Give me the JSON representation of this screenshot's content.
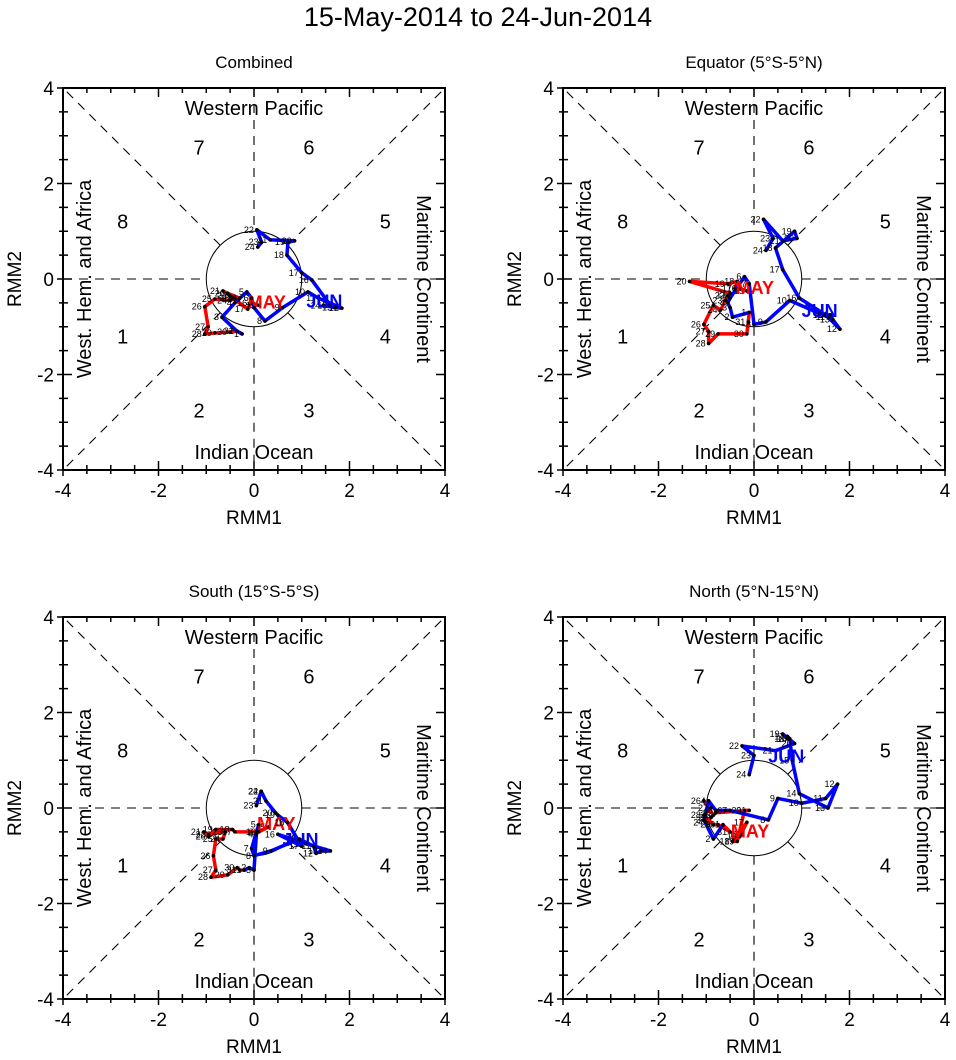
{
  "title": "15-May-2014 to 24-Jun-2014",
  "chart_data": [
    {
      "type": "line",
      "title": "Combined",
      "xlabel": "RMM1",
      "ylabel": "RMM2",
      "xlim": [
        -4,
        4
      ],
      "ylim": [
        -4,
        4
      ],
      "xticks": [
        -4,
        -2,
        0,
        2,
        4
      ],
      "yticks": [
        -4,
        -2,
        0,
        2,
        4
      ],
      "region_labels": {
        "top": "Western Pacific",
        "bottom": "Indian Ocean",
        "left": "West. Hem. and Africa",
        "right": "Maritime Continent"
      },
      "phase_labels": [
        "1",
        "2",
        "3",
        "4",
        "5",
        "6",
        "7",
        "8"
      ],
      "series": [
        {
          "name": "MAY",
          "color": "#ff0000",
          "days": [
            15,
            16,
            17,
            18,
            19,
            20,
            21,
            22,
            23,
            24,
            25,
            26,
            27,
            28,
            29,
            30,
            31
          ],
          "x": [
            0.1,
            -0.08,
            -0.13,
            -0.45,
            -0.3,
            -0.55,
            -0.65,
            -0.5,
            -0.4,
            -0.5,
            -0.82,
            -1.03,
            -0.96,
            -1.03,
            -0.82,
            -0.5,
            -0.36
          ],
          "y": [
            -0.55,
            -0.5,
            -0.63,
            -0.4,
            -0.4,
            -0.3,
            -0.25,
            -0.35,
            -0.4,
            -0.45,
            -0.42,
            -0.58,
            -1.0,
            -1.15,
            -1.13,
            -1.11,
            -1.09
          ]
        },
        {
          "name": "JUN",
          "color": "#0000ff",
          "days": [
            1,
            2,
            3,
            4,
            5,
            6,
            7,
            8,
            9,
            10,
            11,
            12,
            13,
            14,
            15,
            16,
            17,
            18,
            19,
            20,
            21,
            22,
            23,
            24
          ],
          "x": [
            -0.25,
            -0.36,
            -0.67,
            -0.4,
            -0.15,
            -0.05,
            0.0,
            0.23,
            0.6,
            1.13,
            1.35,
            1.84,
            1.7,
            1.45,
            1.6,
            1.21,
            1.0,
            0.69,
            0.71,
            0.85,
            0.34,
            0.06,
            0.16,
            0.08
          ],
          "y": [
            -1.15,
            -1.09,
            -0.8,
            -0.5,
            -0.27,
            -0.4,
            -0.6,
            -0.88,
            -0.6,
            -0.27,
            -0.4,
            -0.61,
            -0.6,
            -0.55,
            -0.55,
            -0.02,
            0.13,
            0.5,
            0.77,
            0.8,
            0.82,
            1.03,
            0.77,
            0.67
          ]
        }
      ]
    },
    {
      "type": "line",
      "title": "Equator (5°S-5°N)",
      "xlabel": "RMM1",
      "ylabel": "RMM2",
      "xlim": [
        -4,
        4
      ],
      "ylim": [
        -4,
        4
      ],
      "xticks": [
        -4,
        -2,
        0,
        2,
        4
      ],
      "yticks": [
        -4,
        -2,
        0,
        2,
        4
      ],
      "region_labels": {
        "top": "Western Pacific",
        "bottom": "Indian Ocean",
        "left": "West. Hem. and Africa",
        "right": "Maritime Continent"
      },
      "phase_labels": [
        "1",
        "2",
        "3",
        "4",
        "5",
        "6",
        "7",
        "8"
      ],
      "series": [
        {
          "name": "MAY",
          "color": "#ff0000",
          "days": [
            15,
            16,
            17,
            18,
            19,
            20,
            21,
            22,
            23,
            24,
            25,
            26,
            27,
            28,
            29,
            30,
            31
          ],
          "x": [
            -0.15,
            -0.3,
            -0.4,
            -0.35,
            -0.55,
            -1.35,
            -0.5,
            -0.55,
            -0.6,
            -0.7,
            -0.85,
            -1.05,
            -0.95,
            -0.95,
            -0.75,
            -0.15,
            -0.12
          ],
          "y": [
            -0.25,
            -0.2,
            -0.2,
            -0.05,
            -0.1,
            -0.05,
            -0.3,
            -0.35,
            -0.45,
            -0.65,
            -0.55,
            -0.95,
            -1.1,
            -1.35,
            -1.15,
            -1.15,
            -0.9
          ]
        },
        {
          "name": "JUN",
          "color": "#0000ff",
          "days": [
            1,
            2,
            3,
            4,
            5,
            6,
            7,
            8,
            9,
            10,
            11,
            12,
            13,
            14,
            15,
            16,
            17,
            18,
            19,
            20,
            21,
            22,
            23,
            24
          ],
          "x": [
            -0.1,
            -0.45,
            -0.5,
            -0.55,
            -0.5,
            -0.2,
            -0.1,
            0.0,
            0.25,
            0.75,
            1.55,
            1.8,
            1.65,
            1.6,
            1.5,
            0.95,
            0.6,
            0.45,
            0.85,
            0.9,
            0.6,
            0.2,
            0.4,
            0.25
          ],
          "y": [
            -0.7,
            -0.8,
            -0.6,
            -0.5,
            -0.4,
            0.05,
            -0.1,
            -0.95,
            -0.9,
            -0.45,
            -0.8,
            -1.05,
            -0.85,
            -0.75,
            -0.75,
            -0.4,
            0.2,
            0.65,
            1.0,
            0.85,
            0.8,
            1.25,
            0.85,
            0.6
          ]
        }
      ]
    },
    {
      "type": "line",
      "title": "South (15°S-5°S)",
      "xlabel": "RMM1",
      "ylabel": "RMM2",
      "xlim": [
        -4,
        4
      ],
      "ylim": [
        -4,
        4
      ],
      "xticks": [
        -4,
        -2,
        0,
        2,
        4
      ],
      "yticks": [
        -4,
        -2,
        0,
        2,
        4
      ],
      "region_labels": {
        "top": "Western Pacific",
        "bottom": "Indian Ocean",
        "left": "West. Hem. and Africa",
        "right": "Maritime Continent"
      },
      "phase_labels": [
        "1",
        "2",
        "3",
        "4",
        "5",
        "6",
        "7",
        "8"
      ],
      "series": [
        {
          "name": "MAY",
          "color": "#ff0000",
          "days": [
            15,
            16,
            17,
            18,
            19,
            20,
            21,
            22,
            23,
            24,
            25,
            26,
            27,
            28,
            29,
            30,
            31
          ],
          "x": [
            0.3,
            0.1,
            -0.4,
            -0.45,
            -0.8,
            -0.95,
            -1.05,
            -0.95,
            -0.6,
            -0.65,
            -0.8,
            -0.85,
            -0.8,
            -0.9,
            -0.55,
            -0.35,
            -0.3
          ],
          "y": [
            -0.4,
            -0.5,
            -0.5,
            -0.45,
            -0.45,
            -0.6,
            -0.5,
            -0.55,
            -0.5,
            -0.65,
            -0.65,
            -1.0,
            -1.3,
            -1.45,
            -1.4,
            -1.25,
            -1.3
          ]
        },
        {
          "name": "JUN",
          "color": "#0000ff",
          "days": [
            1,
            2,
            3,
            4,
            5,
            6,
            7,
            8,
            9,
            10,
            11,
            12,
            13,
            14,
            15,
            16,
            17,
            18,
            19,
            20,
            21,
            22,
            23,
            24
          ],
          "x": [
            -0.2,
            -0.1,
            0.0,
            0.05,
            0.1,
            0.05,
            -0.05,
            0.0,
            0.35,
            0.95,
            1.25,
            1.3,
            1.4,
            1.6,
            1.1,
            0.5,
            1.0,
            0.7,
            0.5,
            0.45,
            0.25,
            0.15,
            0.05,
            0.15
          ],
          "y": [
            -1.3,
            -1.25,
            -1.3,
            -0.55,
            -0.35,
            -0.5,
            -0.85,
            -1.0,
            -0.9,
            -0.65,
            -0.8,
            -0.95,
            -0.9,
            -0.9,
            -0.75,
            -0.55,
            -0.8,
            -0.3,
            -0.15,
            -0.1,
            0.15,
            0.35,
            0.05,
            0.35
          ]
        }
      ]
    },
    {
      "type": "line",
      "title": "North (5°N-15°N)",
      "xlabel": "RMM1",
      "ylabel": "RMM2",
      "xlim": [
        -4,
        4
      ],
      "ylim": [
        -4,
        4
      ],
      "xticks": [
        -4,
        -2,
        0,
        2,
        4
      ],
      "yticks": [
        -4,
        -2,
        0,
        2,
        4
      ],
      "region_labels": {
        "top": "Western Pacific",
        "bottom": "Indian Ocean",
        "left": "West. Hem. and Africa",
        "right": "Maritime Continent"
      },
      "phase_labels": [
        "1",
        "2",
        "3",
        "4",
        "5",
        "6",
        "7",
        "8"
      ],
      "series": [
        {
          "name": "MAY",
          "color": "#ff0000",
          "days": [
            15,
            16,
            17,
            18,
            19,
            20,
            21,
            22,
            23,
            24,
            25,
            26,
            27,
            28,
            29,
            30,
            31
          ],
          "x": [
            -0.25,
            -0.3,
            -0.15,
            -0.45,
            -0.35,
            -0.2,
            -0.1,
            -0.8,
            -0.9,
            -1.0,
            -0.85,
            -1.05,
            -0.9,
            -1.05,
            -0.85,
            -0.75,
            -0.5
          ],
          "y": [
            -0.55,
            -0.6,
            -0.3,
            -0.7,
            -0.7,
            -0.05,
            -0.05,
            -0.1,
            -0.2,
            -0.3,
            -0.15,
            0.15,
            0.0,
            -0.15,
            -0.35,
            -0.35,
            -0.5
          ]
        },
        {
          "name": "JUN",
          "color": "#0000ff",
          "days": [
            1,
            2,
            3,
            4,
            5,
            6,
            7,
            8,
            9,
            10,
            11,
            12,
            13,
            14,
            15,
            16,
            17,
            18,
            19,
            20,
            21,
            22,
            23,
            24
          ],
          "x": [
            -0.65,
            -0.85,
            -1.05,
            -0.95,
            -0.8,
            -0.6,
            -0.5,
            0.3,
            0.5,
            1.0,
            1.5,
            1.75,
            1.55,
            0.95,
            0.8,
            0.75,
            0.7,
            0.7,
            0.6,
            0.85,
            0.45,
            -0.25,
            0.0,
            -0.1
          ],
          "y": [
            -0.35,
            -0.65,
            -0.25,
            0.15,
            -0.05,
            -0.05,
            -0.05,
            -0.25,
            0.2,
            0.1,
            0.2,
            0.5,
            0.0,
            0.3,
            1.0,
            1.45,
            1.5,
            1.45,
            1.55,
            1.35,
            1.2,
            1.3,
            1.1,
            0.7
          ]
        }
      ]
    }
  ]
}
